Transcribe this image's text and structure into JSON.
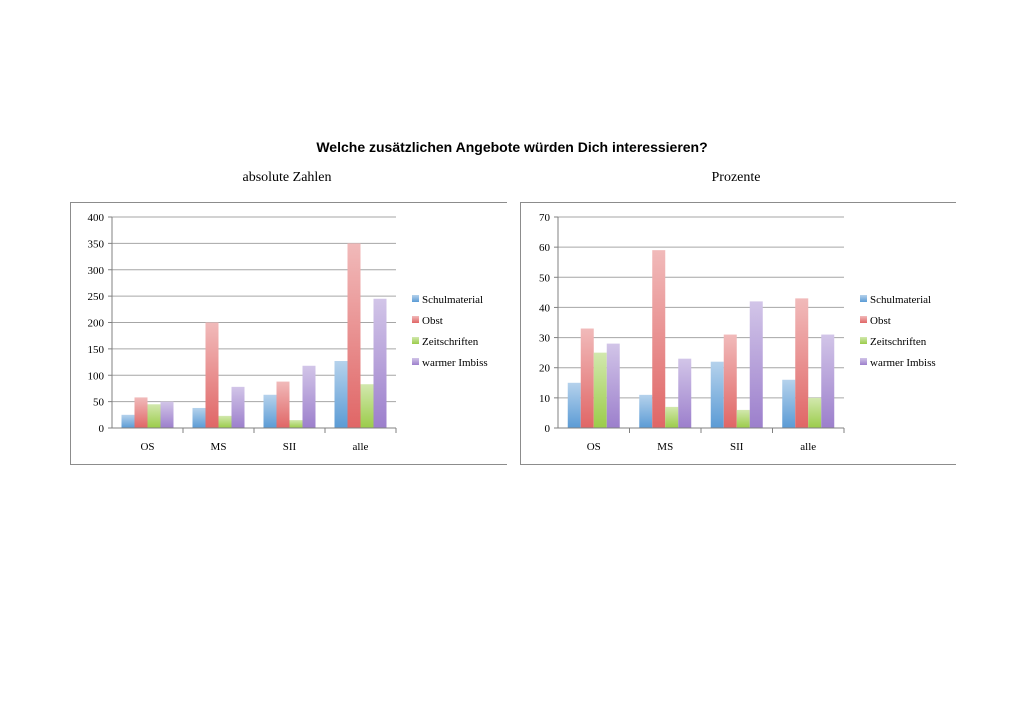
{
  "title": "Welche zusätzlichen Angebote würden Dich interessieren?",
  "colors": {
    "Schulmaterial": "#5b9bd5",
    "Obst": "#e06666",
    "Zeitschriften": "#9bcc4a",
    "warmer Imbiss": "#9c7fcc"
  },
  "chart_data": [
    {
      "type": "bar",
      "title": "absolute Zahlen",
      "categories": [
        "OS",
        "MS",
        "SII",
        "alle"
      ],
      "ylim": [
        0,
        400
      ],
      "yticks": [
        "0",
        "50",
        "100",
        "150",
        "200",
        "250",
        "300",
        "350",
        "400"
      ],
      "grid": true,
      "legend_position": "right",
      "series": [
        {
          "name": "Schulmaterial",
          "values": [
            25,
            38,
            63,
            127
          ]
        },
        {
          "name": "Obst",
          "values": [
            58,
            200,
            88,
            350
          ]
        },
        {
          "name": "Zeitschriften",
          "values": [
            45,
            23,
            15,
            83
          ]
        },
        {
          "name": "warmer Imbiss",
          "values": [
            50,
            78,
            118,
            245
          ]
        }
      ]
    },
    {
      "type": "bar",
      "title": "Prozente",
      "categories": [
        "OS",
        "MS",
        "SII",
        "alle"
      ],
      "ylim": [
        0,
        70
      ],
      "yticks": [
        "0",
        "10",
        "20",
        "30",
        "40",
        "50",
        "60",
        "70"
      ],
      "grid": true,
      "legend_position": "right",
      "series": [
        {
          "name": "Schulmaterial",
          "values": [
            15,
            11,
            22,
            16
          ]
        },
        {
          "name": "Obst",
          "values": [
            33,
            59,
            31,
            43
          ]
        },
        {
          "name": "Zeitschriften",
          "values": [
            25,
            7,
            6,
            10
          ]
        },
        {
          "name": "warmer Imbiss",
          "values": [
            28,
            23,
            42,
            31
          ]
        }
      ]
    }
  ]
}
